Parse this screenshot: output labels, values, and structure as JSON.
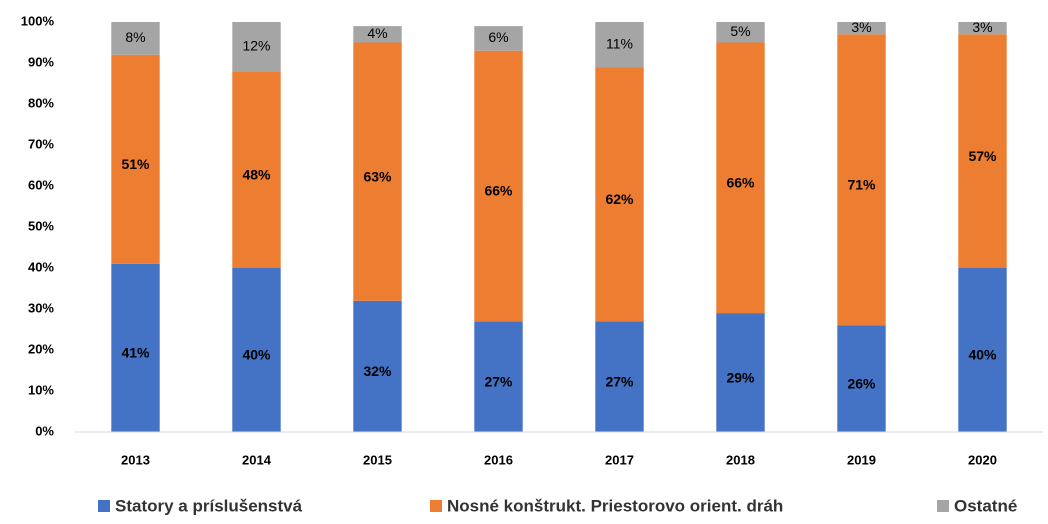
{
  "chart_data": {
    "type": "stacked_bar",
    "categories": [
      "2013",
      "2014",
      "2015",
      "2016",
      "2017",
      "2018",
      "2019",
      "2020"
    ],
    "series": [
      {
        "name": "Statory a príslušenstvá",
        "color": "#4472c4",
        "values": [
          41,
          40,
          32,
          27,
          27,
          29,
          26,
          40
        ],
        "value_labels": [
          "41%",
          "40%",
          "32%",
          "27%",
          "27%",
          "29%",
          "26%",
          "40%"
        ]
      },
      {
        "name": "Nosné konštrukt. Priestorovo orient. dráh",
        "color": "#ed7d31",
        "values": [
          51,
          48,
          63,
          66,
          62,
          66,
          71,
          57
        ],
        "value_labels": [
          "51%",
          "48%",
          "63%",
          "66%",
          "62%",
          "66%",
          "71%",
          "57%"
        ]
      },
      {
        "name": "Ostatné",
        "color": "#a5a5a5",
        "values": [
          8,
          12,
          4,
          6,
          11,
          5,
          3,
          3
        ],
        "value_labels": [
          "8%",
          "12%",
          "4%",
          "6%",
          "11%",
          "5%",
          "3%",
          "3%"
        ]
      }
    ],
    "ylim": [
      0,
      100
    ],
    "yticks": [
      {
        "value": 0,
        "label": "0%"
      },
      {
        "value": 10,
        "label": "10%"
      },
      {
        "value": 20,
        "label": "20%"
      },
      {
        "value": 30,
        "label": "30%"
      },
      {
        "value": 40,
        "label": "40%"
      },
      {
        "value": 50,
        "label": "50%"
      },
      {
        "value": 60,
        "label": "60%"
      },
      {
        "value": 70,
        "label": "70%"
      },
      {
        "value": 80,
        "label": "80%"
      },
      {
        "value": 90,
        "label": "90%"
      },
      {
        "value": 100,
        "label": "100%"
      }
    ],
    "grid": false,
    "legend": "bottom"
  }
}
